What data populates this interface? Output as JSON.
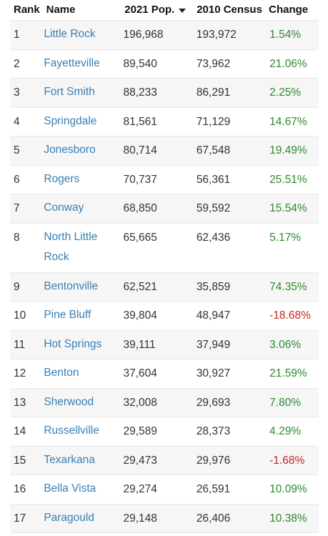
{
  "columns": {
    "rank": "Rank",
    "name": "Name",
    "pop": "2021 Pop.",
    "census": "2010 Census",
    "change": "Change"
  },
  "rows": [
    {
      "rank": "1",
      "name": "Little Rock",
      "pop": "196,968",
      "census": "193,972",
      "change": "1.54%",
      "negative": false
    },
    {
      "rank": "2",
      "name": "Fayetteville",
      "pop": "89,540",
      "census": "73,962",
      "change": "21.06%",
      "negative": false
    },
    {
      "rank": "3",
      "name": "Fort Smith",
      "pop": "88,233",
      "census": "86,291",
      "change": "2.25%",
      "negative": false
    },
    {
      "rank": "4",
      "name": "Springdale",
      "pop": "81,561",
      "census": "71,129",
      "change": "14.67%",
      "negative": false
    },
    {
      "rank": "5",
      "name": "Jonesboro",
      "pop": "80,714",
      "census": "67,548",
      "change": "19.49%",
      "negative": false
    },
    {
      "rank": "6",
      "name": "Rogers",
      "pop": "70,737",
      "census": "56,361",
      "change": "25.51%",
      "negative": false
    },
    {
      "rank": "7",
      "name": "Conway",
      "pop": "68,850",
      "census": "59,592",
      "change": "15.54%",
      "negative": false
    },
    {
      "rank": "8",
      "name": "North Little Rock",
      "pop": "65,665",
      "census": "62,436",
      "change": "5.17%",
      "negative": false
    },
    {
      "rank": "9",
      "name": "Bentonville",
      "pop": "62,521",
      "census": "35,859",
      "change": "74.35%",
      "negative": false
    },
    {
      "rank": "10",
      "name": "Pine Bluff",
      "pop": "39,804",
      "census": "48,947",
      "change": "-18.68%",
      "negative": true
    },
    {
      "rank": "11",
      "name": "Hot Springs",
      "pop": "39,111",
      "census": "37,949",
      "change": "3.06%",
      "negative": false
    },
    {
      "rank": "12",
      "name": "Benton",
      "pop": "37,604",
      "census": "30,927",
      "change": "21.59%",
      "negative": false
    },
    {
      "rank": "13",
      "name": "Sherwood",
      "pop": "32,008",
      "census": "29,693",
      "change": "7.80%",
      "negative": false
    },
    {
      "rank": "14",
      "name": "Russellville",
      "pop": "29,589",
      "census": "28,373",
      "change": "4.29%",
      "negative": false
    },
    {
      "rank": "15",
      "name": "Texarkana",
      "pop": "29,473",
      "census": "29,976",
      "change": "-1.68%",
      "negative": true
    },
    {
      "rank": "16",
      "name": "Bella Vista",
      "pop": "29,274",
      "census": "26,591",
      "change": "10.09%",
      "negative": false
    },
    {
      "rank": "17",
      "name": "Paragould",
      "pop": "29,148",
      "census": "26,406",
      "change": "10.38%",
      "negative": false
    }
  ],
  "colors": {
    "link": "#3a7fb3",
    "positive": "#2e8b2e",
    "negative": "#c62828",
    "stripe": "#f6f6f6"
  },
  "sort_icon": "caret-down-icon"
}
